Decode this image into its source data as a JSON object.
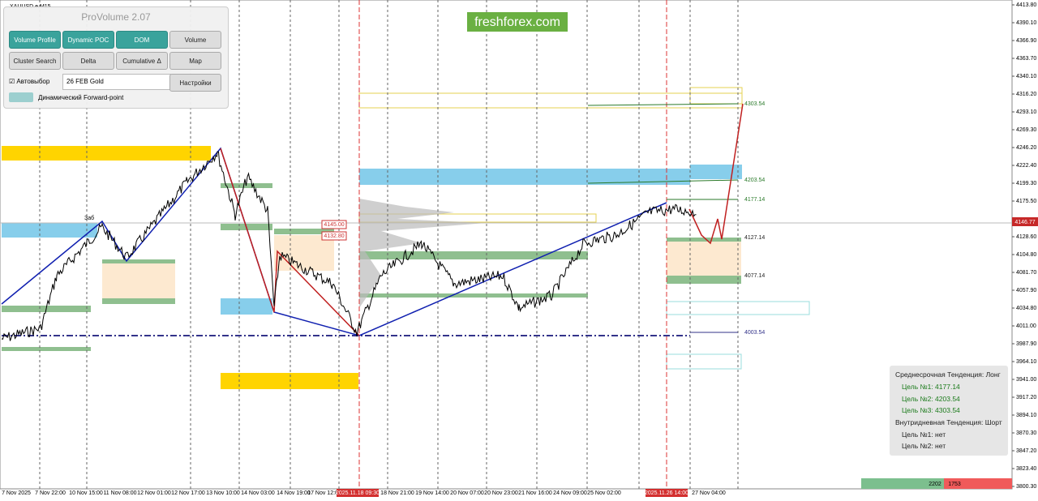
{
  "symbol": "XAUUSD.e,M15",
  "watermark": "freshforex.com",
  "panel": {
    "title": "ProVolume 2.07",
    "buttons": [
      "Volume Profile",
      "Dynamic POC",
      "DOM",
      "Volume",
      "Cluster Search",
      "Delta",
      "Cumulative Δ",
      "Map"
    ],
    "auto_select": "Автовыбор",
    "instrument": "26 FEB Gold",
    "settings": "Настройки",
    "forward_point": "Динамический Forward-point"
  },
  "price_axis": [
    "4413.80",
    "4390.10",
    "4366.90",
    "4363.70",
    "4340.10",
    "4316.20",
    "4293.10",
    "4269.30",
    "4246.20",
    "4222.40",
    "4199.30",
    "4175.50",
    "4128.60",
    "4104.80",
    "4081.70",
    "4057.90",
    "4034.80",
    "4011.00",
    "3987.90",
    "3964.10",
    "3941.00",
    "3917.20",
    "3894.10",
    "3870.30",
    "3847.20",
    "3823.40",
    "3800.30"
  ],
  "current_price": "4146.77",
  "levels": [
    "4303.54",
    "4203.54",
    "4177.14",
    "4127.14",
    "4077.14",
    "4003.54"
  ],
  "boxes": [
    "4145.00",
    "4132.80"
  ],
  "note": "Заб",
  "time_axis": [
    "7 Nov 2025",
    "7 Nov 22:00",
    "10 Nov 15:00",
    "11 Nov 08:00",
    "12 Nov 01:00",
    "12 Nov 17:00",
    "13 Nov 10:00",
    "14 Nov 03:00",
    "14 Nov 19:00",
    "17 Nov 12:00",
    "2025.11.18 09:30",
    "18 Nov 21:00",
    "19 Nov 14:00",
    "20 Nov 07:00",
    "20 Nov 23:00",
    "21 Nov 16:00",
    "24 Nov 09:00",
    "25 Nov 02:00",
    "2025.11.26 14:00",
    "27 Nov 04:00"
  ],
  "info": {
    "mid_trend": "Среднесрочная Тенденция: Лонг",
    "mid_targets": [
      "Цель №1: 4177.14",
      "Цель №2: 4203.54",
      "Цель №3: 4303.54"
    ],
    "intraday_trend": "Внутридневная Тенденция: Шорт",
    "intraday_targets": [
      "Цель №1: нет",
      "Цель №2: нет"
    ]
  },
  "volume_bar": [
    "2202",
    "1753"
  ]
}
